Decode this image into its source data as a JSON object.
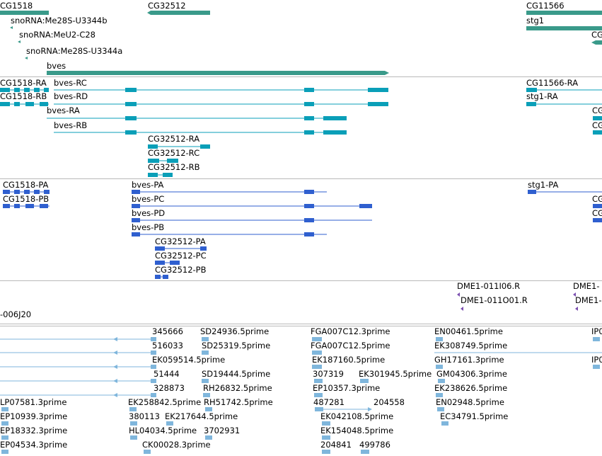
{
  "colors": {
    "gene": "#3a9a8a",
    "transcript": "#0a9fb8",
    "protein": "#2f5fcf",
    "clone": "#7b4fb0",
    "est": "#7fb6dc",
    "divider": "#b9b9b9"
  },
  "tracks": {
    "genes": {
      "labels": {
        "cg1518": "CG1518",
        "cg32512": "CG32512",
        "cg11566": "CG11566",
        "sno_b": "snoRNA:Me28S-U3344b",
        "meu2": "snoRNA:MeU2-C28",
        "sno_a": "snoRNA:Me28S-U3344a",
        "stg1": "stg1",
        "bves": "bves",
        "cg_edge": "CG"
      }
    },
    "transcripts": {
      "labels": {
        "cg1518_ra": "CG1518-RA",
        "bves_rc": "bves-RC",
        "cg11566_ra": "CG11566-RA",
        "cg1518_rb": "CG1518-RB",
        "bves_rd": "bves-RD",
        "stg1_ra": "stg1-RA",
        "bves_ra": "bves-RA",
        "bves_rb": "bves-RB",
        "cg32512_ra": "CG32512-RA",
        "cg32512_rc": "CG32512-RC",
        "cg32512_rb": "CG32512-RB",
        "edge1": "CG",
        "edge2": "CG"
      }
    },
    "proteins": {
      "labels": {
        "cg1518_pa": "CG1518-PA",
        "cg1518_pb": "CG1518-PB",
        "bves_pa": "bves-PA",
        "bves_pc": "bves-PC",
        "bves_pd": "bves-PD",
        "bves_pb": "bves-PB",
        "cg32512_pa": "CG32512-PA",
        "cg32512_pc": "CG32512-PC",
        "cg32512_pb": "CG32512-PB",
        "stg1_pa": "stg1-PA",
        "edge1": "CG",
        "edge2": "CG"
      }
    },
    "clones": {
      "labels": {
        "dme1_011i06": "DME1-011I06.R",
        "dme1_edge1": "DME1-",
        "dme1_011o01": "DME1-011O01.R",
        "dme1_edge2": "DME1-",
        "dme1_006j20": "-006J20"
      }
    },
    "ests": {
      "labels": {
        "r1c1": "345666",
        "r1c2": "SD24936.5prime",
        "r1c3": "FGA007C12.3prime",
        "r1c4": "EN00461.5prime",
        "r1c5": "IP0",
        "r2c1": "516033",
        "r2c2": "SD25319.5prime",
        "r2c3": "FGA007C12.5prime",
        "r2c4": "EK308749.5prime",
        "r3c1": "EK059514.5prime",
        "r3c2": "EK187160.5prime",
        "r3c3": "GH17161.3prime",
        "r3c4": "IP0",
        "r4c1": "51444",
        "r4c2": "SD19444.5prime",
        "r4c3": "307319",
        "r4c4": "EK301945.5prime",
        "r4c5": "GM04306.3prime",
        "r5c1": "328873",
        "r5c2": "RH26832.5prime",
        "r5c3": "EP10357.3prime",
        "r5c4": "EK238626.5prime",
        "r6c0": "LP07581.3prime",
        "r6c1": "EK258842.5prime",
        "r6c2": "RH51742.5prime",
        "r6c3": "487281",
        "r6c4": "204558",
        "r6c5": "EN02948.5prime",
        "r7c0": "EP10939.3prime",
        "r7c1": "380113",
        "r7c2": "EK217644.5prime",
        "r7c3": "EK042108.5prime",
        "r7c4": "EC34791.5prime",
        "r8c0": "EP18332.3prime",
        "r8c1": "HL04034.5prime",
        "r8c2": "3702931",
        "r8c3": "EK154048.5prime",
        "r9c0": "EP04534.3prime",
        "r9c1": "CK00028.3prime",
        "r9c2": "204841",
        "r9c3": "499786"
      }
    }
  }
}
